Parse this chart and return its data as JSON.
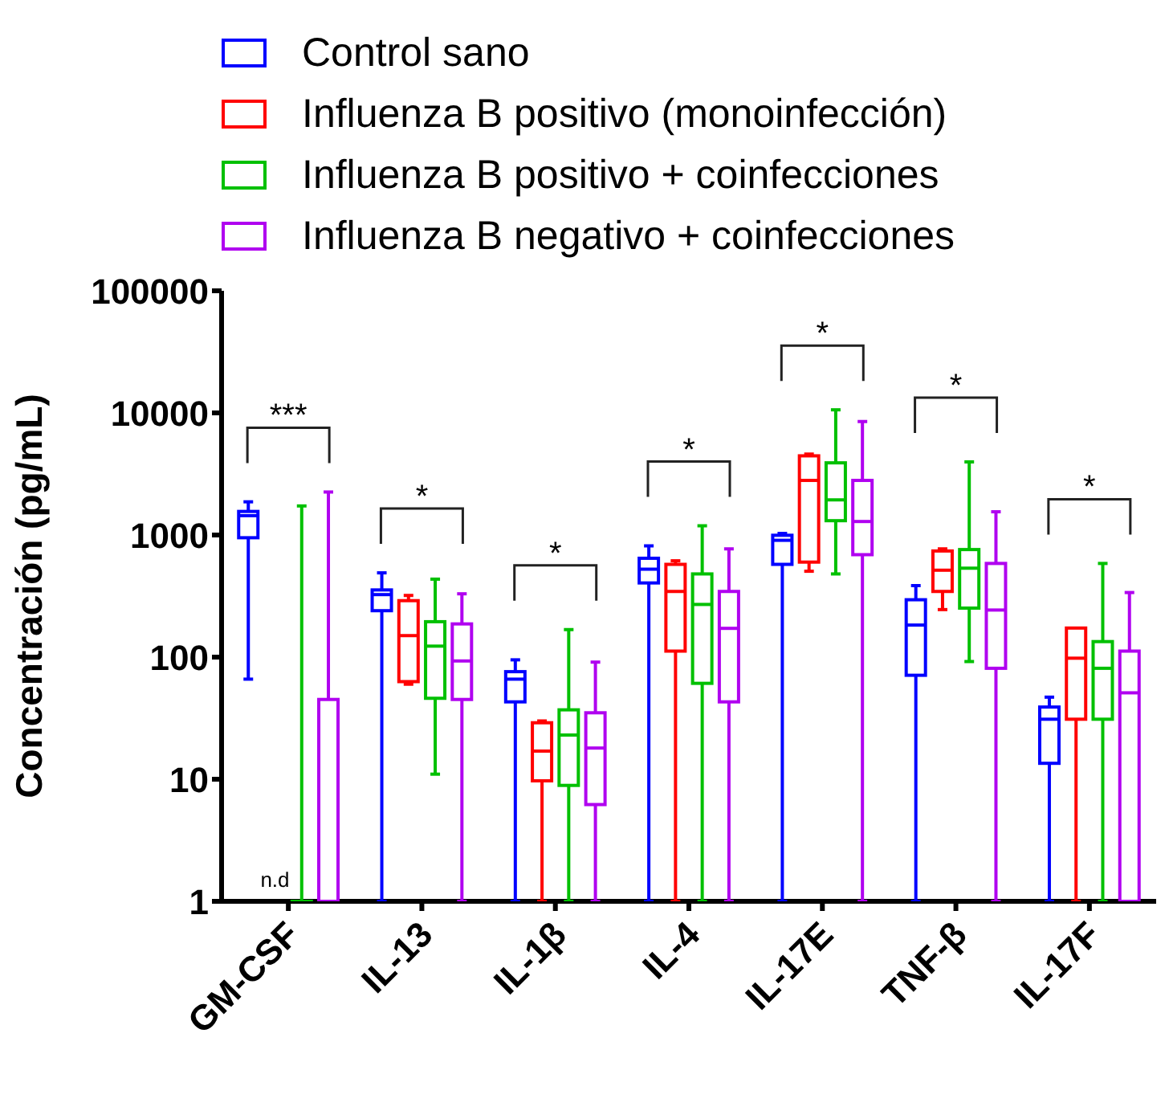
{
  "chart_data": {
    "type": "box",
    "ylabel": "Concentración (pg/mL)",
    "log": true,
    "ylim": [
      1,
      100000
    ],
    "yticks": [
      1,
      10,
      100,
      1000,
      10000,
      100000
    ],
    "legend": "top",
    "grid": false,
    "categories": [
      "GM-CSF",
      "IL-13",
      "IL-1β",
      "IL-4",
      "IL-17E",
      "TNF-β",
      "IL-17F"
    ],
    "series": [
      {
        "name": "Control sano",
        "color": "#0000ff",
        "boxes": [
          {
            "low": 66,
            "q1": 950,
            "median": 1440,
            "q3": 1560,
            "high": 1870
          },
          {
            "low": 1,
            "q1": 240,
            "median": 325,
            "q3": 355,
            "high": 490
          },
          {
            "low": 1,
            "q1": 43,
            "median": 66,
            "q3": 76,
            "high": 95
          },
          {
            "low": 1,
            "q1": 405,
            "median": 525,
            "q3": 645,
            "high": 815
          },
          {
            "low": 1,
            "q1": 575,
            "median": 905,
            "q3": 995,
            "high": 1030
          },
          {
            "low": 1,
            "q1": 71,
            "median": 183,
            "q3": 295,
            "high": 385
          },
          {
            "low": 1,
            "q1": 13.5,
            "median": 31,
            "q3": 39,
            "high": 47
          }
        ]
      },
      {
        "name": "Influenza B positivo (monoinfección)",
        "color": "#ff0000",
        "boxes": [
          null,
          {
            "low": 60,
            "q1": 63,
            "median": 150,
            "q3": 290,
            "high": 320
          },
          {
            "low": 1,
            "q1": 9.7,
            "median": 17,
            "q3": 29,
            "high": 30
          },
          {
            "low": 1,
            "q1": 112,
            "median": 345,
            "q3": 575,
            "high": 615
          },
          {
            "low": 505,
            "q1": 600,
            "median": 2800,
            "q3": 4450,
            "high": 4600
          },
          {
            "low": 245,
            "q1": 345,
            "median": 515,
            "q3": 740,
            "high": 770
          },
          {
            "low": 1,
            "q1": 31,
            "median": 98,
            "q3": 173,
            "high": 173
          }
        ]
      },
      {
        "name": "Influenza B positivo + coinfecciones",
        "color": "#00c000",
        "boxes": [
          {
            "low": 1,
            "q1": 1,
            "median": 1,
            "q3": 1,
            "high": 1730
          },
          {
            "low": 11,
            "q1": 46,
            "median": 123,
            "q3": 195,
            "high": 435
          },
          {
            "low": 1,
            "q1": 8.9,
            "median": 23,
            "q3": 37,
            "high": 168
          },
          {
            "low": 1,
            "q1": 61,
            "median": 270,
            "q3": 480,
            "high": 1190
          },
          {
            "low": 480,
            "q1": 1310,
            "median": 1940,
            "q3": 3900,
            "high": 10600
          },
          {
            "low": 92,
            "q1": 252,
            "median": 535,
            "q3": 760,
            "high": 3970
          },
          {
            "low": 1,
            "q1": 31,
            "median": 81,
            "q3": 134,
            "high": 585
          }
        ]
      },
      {
        "name": "Influenza B negativo + coinfecciones",
        "color": "#b000f0",
        "boxes": [
          {
            "low": 1,
            "q1": 1,
            "median": 1,
            "q3": 45,
            "high": 2250
          },
          {
            "low": 1,
            "q1": 45,
            "median": 93,
            "q3": 187,
            "high": 330
          },
          {
            "low": 1,
            "q1": 6.2,
            "median": 18,
            "q3": 35,
            "high": 91
          },
          {
            "low": 1,
            "q1": 43,
            "median": 172,
            "q3": 345,
            "high": 770
          },
          {
            "low": 1,
            "q1": 690,
            "median": 1290,
            "q3": 2800,
            "high": 8500
          },
          {
            "low": 1,
            "q1": 81,
            "median": 243,
            "q3": 585,
            "high": 1550
          },
          {
            "low": 1,
            "q1": 1,
            "median": 51,
            "q3": 112,
            "high": 338
          }
        ]
      }
    ],
    "annotations": [
      "***",
      "*",
      "*",
      "*",
      "*",
      "*",
      "*",
      "n.d"
    ]
  }
}
